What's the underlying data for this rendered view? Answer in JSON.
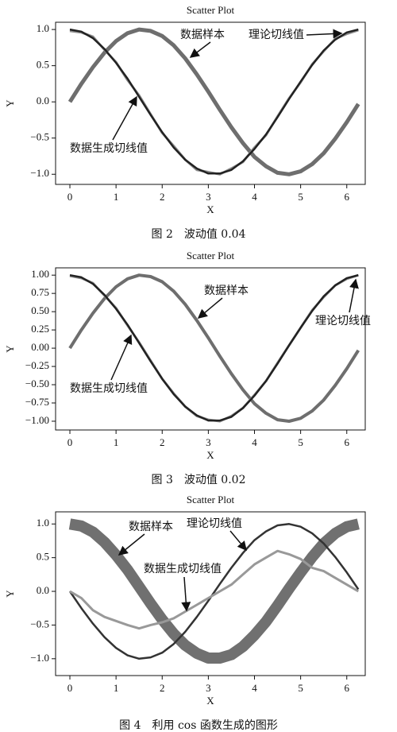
{
  "chart_data": [
    {
      "type": "line",
      "title": "Scatter Plot",
      "x_label": "X",
      "y_label": "Y",
      "caption": "图 2　波动值 0.04",
      "x": [
        0,
        0.25,
        0.5,
        0.75,
        1,
        1.25,
        1.5,
        1.75,
        2,
        2.25,
        2.5,
        2.75,
        3,
        3.25,
        3.5,
        3.75,
        4,
        4.25,
        4.5,
        4.75,
        5,
        5.25,
        5.5,
        5.75,
        6,
        6.25
      ],
      "series": [
        {
          "color": "#6e6e6e",
          "values": [
            0,
            0.25,
            0.48,
            0.68,
            0.84,
            0.95,
            1.0,
            0.98,
            0.91,
            0.78,
            0.6,
            0.38,
            0.14,
            -0.11,
            -0.35,
            -0.57,
            -0.76,
            -0.89,
            -0.98,
            -1.0,
            -0.96,
            -0.86,
            -0.71,
            -0.51,
            -0.28,
            -0.03
          ]
        },
        {
          "color": "#222222",
          "values": [
            1,
            0.97,
            0.88,
            0.73,
            0.54,
            0.32,
            0.07,
            -0.18,
            -0.42,
            -0.63,
            -0.8,
            -0.92,
            -0.99,
            -0.99,
            -0.94,
            -0.82,
            -0.65,
            -0.45,
            -0.21,
            0.04,
            0.28,
            0.51,
            0.71,
            0.86,
            0.96,
            1.0
          ]
        },
        {
          "color": "#8c8c8c",
          "values": [
            0.98,
            0.96,
            0.9,
            0.72,
            0.55,
            0.3,
            0.09,
            -0.17,
            -0.43,
            -0.61,
            -0.8,
            -0.94,
            -0.97,
            -1.0,
            -0.92,
            -0.83,
            -0.63,
            -0.46,
            -0.2,
            0.05,
            0.27,
            0.52,
            0.7,
            0.87,
            0.94,
            0.99
          ]
        }
      ],
      "annotations": [
        {
          "text": "数据样本"
        },
        {
          "text": "理论切线值"
        },
        {
          "text": "数据生成切线值"
        }
      ],
      "xlim": [
        -0.31,
        6.4
      ],
      "xticks": [
        0,
        1,
        2,
        3,
        4,
        5,
        6
      ],
      "ylim": [
        -1.14,
        1.1
      ],
      "yticks": [
        {
          "value": -1,
          "label": "−1.0"
        },
        {
          "value": -0.5,
          "label": "−0.5"
        },
        {
          "value": 0,
          "label": "0.0"
        },
        {
          "value": 0.5,
          "label": "0.5"
        },
        {
          "value": 1,
          "label": "1.0"
        }
      ]
    },
    {
      "type": "line",
      "title": "Scatter Plot",
      "x_label": "X",
      "y_label": "Y",
      "caption": "图 3　波动值 0.02",
      "x": [
        0,
        0.25,
        0.5,
        0.75,
        1,
        1.25,
        1.5,
        1.75,
        2,
        2.25,
        2.5,
        2.75,
        3,
        3.25,
        3.5,
        3.75,
        4,
        4.25,
        4.5,
        4.75,
        5,
        5.25,
        5.5,
        5.75,
        6,
        6.25
      ],
      "series": [
        {
          "color": "#6e6e6e",
          "values": [
            0,
            0.25,
            0.48,
            0.68,
            0.84,
            0.95,
            1.0,
            0.98,
            0.91,
            0.78,
            0.6,
            0.38,
            0.14,
            -0.11,
            -0.35,
            -0.57,
            -0.76,
            -0.89,
            -0.98,
            -1.0,
            -0.96,
            -0.86,
            -0.71,
            -0.51,
            -0.28,
            -0.03
          ]
        },
        {
          "color": "#222222",
          "values": [
            1,
            0.97,
            0.88,
            0.73,
            0.54,
            0.32,
            0.07,
            -0.18,
            -0.42,
            -0.63,
            -0.8,
            -0.92,
            -0.99,
            -0.99,
            -0.94,
            -0.82,
            -0.65,
            -0.45,
            -0.21,
            0.04,
            0.28,
            0.51,
            0.71,
            0.86,
            0.96,
            1.0
          ]
        },
        {
          "color": "#8c8c8c",
          "values": [
            0.99,
            0.96,
            0.89,
            0.72,
            0.55,
            0.31,
            0.08,
            -0.17,
            -0.42,
            -0.62,
            -0.8,
            -0.93,
            -0.98,
            -1.0,
            -0.93,
            -0.82,
            -0.64,
            -0.45,
            -0.2,
            0.04,
            0.28,
            0.52,
            0.7,
            0.86,
            0.95,
            1.0
          ]
        }
      ],
      "annotations": [
        {
          "text": "数据样本"
        },
        {
          "text": "理论切线值"
        },
        {
          "text": "数据生成切线值"
        }
      ],
      "xlim": [
        -0.31,
        6.4
      ],
      "xticks": [
        0,
        1,
        2,
        3,
        4,
        5,
        6
      ],
      "ylim": [
        -1.12,
        1.1
      ],
      "yticks": [
        {
          "value": -1,
          "label": "−1.00"
        },
        {
          "value": -0.75,
          "label": "−0.75"
        },
        {
          "value": -0.5,
          "label": "−0.50"
        },
        {
          "value": -0.25,
          "label": "−0.25"
        },
        {
          "value": 0,
          "label": "0.00"
        },
        {
          "value": 0.25,
          "label": "0.25"
        },
        {
          "value": 0.5,
          "label": "0.50"
        },
        {
          "value": 0.75,
          "label": "0.75"
        },
        {
          "value": 1,
          "label": "1.00"
        }
      ]
    },
    {
      "type": "line",
      "title": "Scatter Plot",
      "x_label": "X",
      "y_label": "Y",
      "caption": "图 4　利用 cos 函数生成的图形",
      "x": [
        0,
        0.25,
        0.5,
        0.75,
        1,
        1.25,
        1.5,
        1.75,
        2,
        2.25,
        2.5,
        2.75,
        3,
        3.25,
        3.5,
        3.75,
        4,
        4.25,
        4.5,
        4.75,
        5,
        5.25,
        5.5,
        5.75,
        6,
        6.25
      ],
      "series": [
        {
          "color": "#707070",
          "values": [
            1,
            0.97,
            0.88,
            0.73,
            0.54,
            0.32,
            0.07,
            -0.18,
            -0.42,
            -0.63,
            -0.8,
            -0.92,
            -0.99,
            -0.99,
            -0.94,
            -0.82,
            -0.65,
            -0.45,
            -0.21,
            0.04,
            0.28,
            0.51,
            0.71,
            0.86,
            0.96,
            1.0
          ]
        },
        {
          "color": "#333333",
          "values": [
            0,
            -0.25,
            -0.48,
            -0.68,
            -0.84,
            -0.95,
            -1.0,
            -0.98,
            -0.91,
            -0.78,
            -0.6,
            -0.38,
            -0.14,
            0.11,
            0.35,
            0.57,
            0.76,
            0.89,
            0.98,
            1.0,
            0.96,
            0.86,
            0.71,
            0.51,
            0.28,
            0.03
          ]
        },
        {
          "color": "#999999",
          "values": [
            0,
            -0.1,
            -0.28,
            -0.38,
            -0.44,
            -0.5,
            -0.55,
            -0.5,
            -0.46,
            -0.4,
            -0.3,
            -0.2,
            -0.1,
            0.0,
            0.1,
            0.25,
            0.4,
            0.5,
            0.6,
            0.55,
            0.48,
            0.35,
            0.3,
            0.2,
            0.1,
            0.0
          ]
        }
      ],
      "annotations": [
        {
          "text": "数据样本"
        },
        {
          "text": "理论切线值"
        },
        {
          "text": "数据生成切线值"
        }
      ],
      "xlim": [
        -0.31,
        6.4
      ],
      "xticks": [
        0,
        1,
        2,
        3,
        4,
        5,
        6
      ],
      "ylim": [
        -1.25,
        1.18
      ],
      "yticks": [
        {
          "value": -1,
          "label": "−1.0"
        },
        {
          "value": -0.5,
          "label": "−0.5"
        },
        {
          "value": 0,
          "label": "0.0"
        },
        {
          "value": 0.5,
          "label": "0.5"
        },
        {
          "value": 1,
          "label": "1.0"
        }
      ]
    }
  ]
}
